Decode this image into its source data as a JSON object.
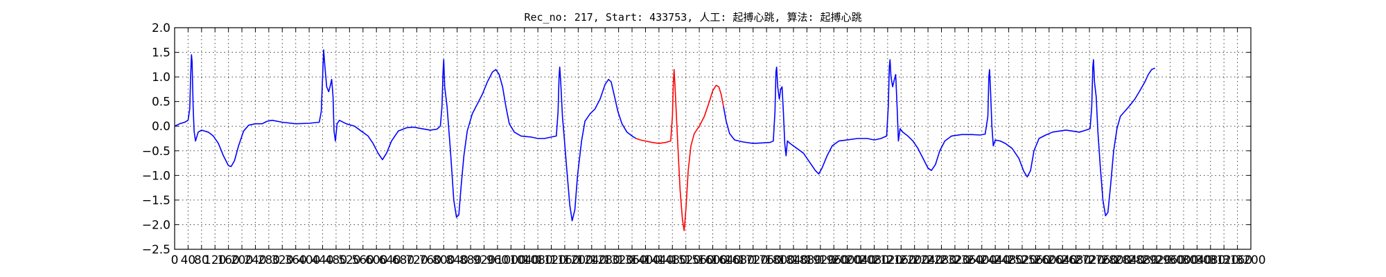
{
  "chart_data": {
    "type": "line",
    "title": "Rec_no: 217, Start: 433753, 人工: 起搏心跳, 算法: 起搏心跳",
    "xlabel": "",
    "ylabel": "",
    "xlim": [
      0,
      3200
    ],
    "ylim": [
      -2.5,
      2.0
    ],
    "grid": true,
    "yticks": [
      2.0,
      1.5,
      1.0,
      0.5,
      0.0,
      -0.5,
      -1.0,
      -1.5,
      -2.0,
      -2.5
    ],
    "ytick_labels": [
      "2.0",
      "1.5",
      "1.0",
      "0.5",
      "0.0",
      "−0.5",
      "−1.0",
      "−1.5",
      "−2.0",
      "−2.5"
    ],
    "xticks": [
      0,
      40,
      80,
      120,
      160,
      200,
      240,
      280,
      320,
      360,
      400,
      440,
      480,
      520,
      560,
      600,
      640,
      680,
      720,
      760,
      800,
      840,
      880,
      920,
      960,
      1000,
      1040,
      1080,
      1120,
      1160,
      1200,
      1240,
      1280,
      1320,
      1360,
      1400,
      1440,
      1480,
      1520,
      1560,
      1600,
      1640,
      1680,
      1720,
      1760,
      1800,
      1840,
      1880,
      1920,
      1960,
      2000,
      2040,
      2080,
      2120,
      2160,
      2200,
      2240,
      2280,
      2320,
      2360,
      2400,
      2440,
      2480,
      2520,
      2560,
      2600,
      2640,
      2680,
      2720,
      2760,
      2800,
      2840,
      2880,
      2920,
      2960,
      3000,
      3040,
      3080,
      3120,
      3160,
      3200
    ],
    "xtick_labels": [
      "0",
      "40",
      "80",
      "120",
      "160",
      "200",
      "240",
      "280",
      "320",
      "360",
      "400",
      "440",
      "480",
      "520",
      "560",
      "600",
      "640",
      "680",
      "720",
      "760",
      "800",
      "840",
      "880",
      "920",
      "960",
      "1000",
      "1040",
      "1080",
      "1120",
      "1160",
      "1200",
      "1240",
      "1280",
      "1320",
      "1360",
      "1400",
      "1440",
      "1480",
      "1520",
      "1560",
      "1600",
      "1640",
      "1680",
      "1720",
      "1760",
      "1800",
      "1840",
      "1880",
      "1920",
      "1960",
      "2000",
      "2040",
      "2080",
      "2120",
      "2160",
      "2200",
      "2240",
      "2280",
      "2320",
      "2360",
      "2400",
      "2440",
      "2480",
      "2520",
      "2560",
      "2600",
      "2640",
      "2680",
      "2720",
      "2760",
      "2800",
      "2840",
      "2880",
      "2920",
      "2960",
      "3000",
      "3040",
      "3080",
      "3120",
      "3160",
      "3200"
    ],
    "series": [
      {
        "color": "#0000ff",
        "points": [
          [
            0,
            0.0
          ],
          [
            15,
            0.05
          ],
          [
            30,
            0.08
          ],
          [
            40,
            0.12
          ],
          [
            45,
            0.35
          ],
          [
            48,
            1.1
          ],
          [
            50,
            1.45
          ],
          [
            52,
            1.3
          ],
          [
            55,
            0.4
          ],
          [
            58,
            -0.1
          ],
          [
            62,
            -0.3
          ],
          [
            70,
            -0.12
          ],
          [
            80,
            -0.08
          ],
          [
            100,
            -0.12
          ],
          [
            115,
            -0.2
          ],
          [
            130,
            -0.35
          ],
          [
            145,
            -0.6
          ],
          [
            160,
            -0.8
          ],
          [
            168,
            -0.82
          ],
          [
            178,
            -0.7
          ],
          [
            190,
            -0.4
          ],
          [
            205,
            -0.1
          ],
          [
            220,
            0.02
          ],
          [
            240,
            0.05
          ],
          [
            260,
            0.05
          ],
          [
            275,
            0.1
          ],
          [
            290,
            0.12
          ],
          [
            320,
            0.08
          ],
          [
            360,
            0.05
          ],
          [
            400,
            0.06
          ],
          [
            430,
            0.08
          ],
          [
            436,
            0.3
          ],
          [
            440,
            1.0
          ],
          [
            443,
            1.55
          ],
          [
            447,
            1.2
          ],
          [
            452,
            0.8
          ],
          [
            458,
            0.7
          ],
          [
            462,
            0.8
          ],
          [
            467,
            0.95
          ],
          [
            471,
            0.6
          ],
          [
            474,
            -0.1
          ],
          [
            478,
            -0.3
          ],
          [
            483,
            0.05
          ],
          [
            490,
            0.12
          ],
          [
            510,
            0.05
          ],
          [
            535,
            0.0
          ],
          [
            555,
            -0.1
          ],
          [
            575,
            -0.2
          ],
          [
            590,
            -0.35
          ],
          [
            605,
            -0.55
          ],
          [
            618,
            -0.68
          ],
          [
            630,
            -0.55
          ],
          [
            645,
            -0.3
          ],
          [
            665,
            -0.1
          ],
          [
            690,
            -0.03
          ],
          [
            710,
            -0.02
          ],
          [
            735,
            -0.05
          ],
          [
            760,
            -0.08
          ],
          [
            780,
            -0.06
          ],
          [
            790,
            0.0
          ],
          [
            795,
            0.4
          ],
          [
            798,
            1.1
          ],
          [
            800,
            1.35
          ],
          [
            803,
            0.8
          ],
          [
            810,
            0.4
          ],
          [
            820,
            -0.5
          ],
          [
            830,
            -1.5
          ],
          [
            838,
            -1.85
          ],
          [
            845,
            -1.8
          ],
          [
            852,
            -1.2
          ],
          [
            860,
            -0.6
          ],
          [
            870,
            -0.1
          ],
          [
            885,
            0.25
          ],
          [
            900,
            0.45
          ],
          [
            915,
            0.65
          ],
          [
            930,
            0.9
          ],
          [
            945,
            1.1
          ],
          [
            955,
            1.15
          ],
          [
            965,
            1.05
          ],
          [
            975,
            0.8
          ],
          [
            985,
            0.4
          ],
          [
            995,
            0.05
          ],
          [
            1010,
            -0.12
          ],
          [
            1030,
            -0.2
          ],
          [
            1060,
            -0.22
          ],
          [
            1080,
            -0.25
          ],
          [
            1100,
            -0.25
          ],
          [
            1120,
            -0.22
          ],
          [
            1135,
            -0.2
          ],
          [
            1140,
            0.3
          ],
          [
            1143,
            1.0
          ],
          [
            1145,
            1.2
          ],
          [
            1148,
            0.9
          ],
          [
            1153,
            0.2
          ],
          [
            1158,
            -0.2
          ],
          [
            1165,
            -0.8
          ],
          [
            1175,
            -1.6
          ],
          [
            1182,
            -1.92
          ],
          [
            1190,
            -1.7
          ],
          [
            1198,
            -1.0
          ],
          [
            1210,
            -0.3
          ],
          [
            1220,
            0.1
          ],
          [
            1235,
            0.25
          ],
          [
            1250,
            0.35
          ],
          [
            1265,
            0.55
          ],
          [
            1280,
            0.85
          ],
          [
            1290,
            0.95
          ],
          [
            1298,
            0.9
          ],
          [
            1308,
            0.6
          ],
          [
            1318,
            0.3
          ],
          [
            1330,
            0.05
          ],
          [
            1345,
            -0.12
          ],
          [
            1360,
            -0.2
          ],
          [
            1372,
            -0.25
          ]
        ],
        "name": ""
      },
      {
        "color": "#ff0000",
        "points": [
          [
            1372,
            -0.25
          ],
          [
            1385,
            -0.28
          ],
          [
            1400,
            -0.3
          ],
          [
            1420,
            -0.33
          ],
          [
            1440,
            -0.35
          ],
          [
            1460,
            -0.33
          ],
          [
            1475,
            -0.3
          ],
          [
            1480,
            0.2
          ],
          [
            1483,
            0.9
          ],
          [
            1485,
            1.15
          ],
          [
            1488,
            0.8
          ],
          [
            1492,
            0.2
          ],
          [
            1497,
            -0.5
          ],
          [
            1503,
            -1.3
          ],
          [
            1510,
            -1.9
          ],
          [
            1515,
            -2.12
          ],
          [
            1520,
            -1.7
          ],
          [
            1527,
            -0.9
          ],
          [
            1535,
            -0.4
          ],
          [
            1545,
            -0.15
          ],
          [
            1560,
            0.0
          ],
          [
            1575,
            0.2
          ],
          [
            1590,
            0.5
          ],
          [
            1600,
            0.72
          ],
          [
            1610,
            0.83
          ],
          [
            1618,
            0.8
          ],
          [
            1625,
            0.65
          ],
          [
            1632,
            0.4
          ]
        ],
        "name": ""
      },
      {
        "color": "#0000ff",
        "points": [
          [
            1632,
            0.4
          ],
          [
            1640,
            0.1
          ],
          [
            1650,
            -0.15
          ],
          [
            1665,
            -0.28
          ],
          [
            1690,
            -0.32
          ],
          [
            1720,
            -0.35
          ],
          [
            1745,
            -0.34
          ],
          [
            1770,
            -0.33
          ],
          [
            1780,
            -0.3
          ],
          [
            1785,
            0.3
          ],
          [
            1788,
            1.1
          ],
          [
            1790,
            1.2
          ],
          [
            1793,
            0.8
          ],
          [
            1798,
            0.55
          ],
          [
            1802,
            0.75
          ],
          [
            1806,
            0.8
          ],
          [
            1810,
            0.3
          ],
          [
            1814,
            -0.35
          ],
          [
            1818,
            -0.6
          ],
          [
            1822,
            -0.3
          ],
          [
            1830,
            -0.35
          ],
          [
            1850,
            -0.45
          ],
          [
            1870,
            -0.55
          ],
          [
            1890,
            -0.75
          ],
          [
            1905,
            -0.9
          ],
          [
            1915,
            -0.97
          ],
          [
            1925,
            -0.85
          ],
          [
            1940,
            -0.6
          ],
          [
            1955,
            -0.4
          ],
          [
            1975,
            -0.3
          ],
          [
            2000,
            -0.28
          ],
          [
            2030,
            -0.25
          ],
          [
            2060,
            -0.25
          ],
          [
            2080,
            -0.28
          ],
          [
            2100,
            -0.25
          ],
          [
            2117,
            -0.2
          ],
          [
            2122,
            0.4
          ],
          [
            2125,
            1.2
          ],
          [
            2127,
            1.35
          ],
          [
            2130,
            1.0
          ],
          [
            2135,
            0.8
          ],
          [
            2140,
            0.95
          ],
          [
            2144,
            1.05
          ],
          [
            2148,
            0.4
          ],
          [
            2152,
            -0.3
          ],
          [
            2157,
            -0.05
          ],
          [
            2165,
            -0.12
          ],
          [
            2180,
            -0.2
          ],
          [
            2195,
            -0.3
          ],
          [
            2210,
            -0.45
          ],
          [
            2225,
            -0.65
          ],
          [
            2240,
            -0.85
          ],
          [
            2250,
            -0.9
          ],
          [
            2262,
            -0.78
          ],
          [
            2275,
            -0.5
          ],
          [
            2290,
            -0.3
          ],
          [
            2310,
            -0.2
          ],
          [
            2340,
            -0.17
          ],
          [
            2370,
            -0.17
          ],
          [
            2395,
            -0.18
          ],
          [
            2410,
            -0.16
          ],
          [
            2418,
            0.2
          ],
          [
            2421,
            1.0
          ],
          [
            2423,
            1.15
          ],
          [
            2426,
            0.7
          ],
          [
            2430,
            0.0
          ],
          [
            2434,
            -0.4
          ],
          [
            2440,
            -0.28
          ],
          [
            2455,
            -0.3
          ],
          [
            2470,
            -0.35
          ],
          [
            2490,
            -0.45
          ],
          [
            2510,
            -0.65
          ],
          [
            2525,
            -0.92
          ],
          [
            2535,
            -1.03
          ],
          [
            2545,
            -0.9
          ],
          [
            2555,
            -0.5
          ],
          [
            2570,
            -0.25
          ],
          [
            2590,
            -0.18
          ],
          [
            2610,
            -0.12
          ],
          [
            2630,
            -0.1
          ],
          [
            2650,
            -0.08
          ],
          [
            2670,
            -0.1
          ],
          [
            2690,
            -0.12
          ],
          [
            2710,
            -0.08
          ],
          [
            2722,
            -0.05
          ],
          [
            2727,
            0.4
          ],
          [
            2730,
            1.2
          ],
          [
            2732,
            1.35
          ],
          [
            2735,
            0.9
          ],
          [
            2740,
            0.6
          ],
          [
            2745,
            -0.1
          ],
          [
            2752,
            -0.8
          ],
          [
            2760,
            -1.5
          ],
          [
            2768,
            -1.82
          ],
          [
            2775,
            -1.75
          ],
          [
            2783,
            -1.2
          ],
          [
            2792,
            -0.5
          ],
          [
            2802,
            -0.05
          ],
          [
            2812,
            0.2
          ],
          [
            2825,
            0.3
          ],
          [
            2840,
            0.42
          ],
          [
            2855,
            0.55
          ],
          [
            2870,
            0.72
          ],
          [
            2885,
            0.9
          ],
          [
            2895,
            1.05
          ],
          [
            2905,
            1.15
          ],
          [
            2915,
            1.18
          ]
        ],
        "name": ""
      }
    ]
  }
}
